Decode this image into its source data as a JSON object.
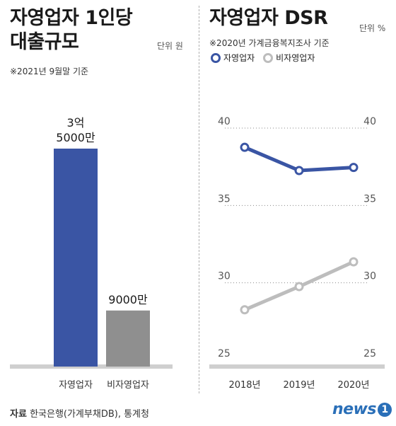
{
  "left": {
    "title_line1": "자영업자 1인당",
    "title_line2": "대출규모",
    "unit": "단위 원",
    "subtitle": "※2021년 9월말 기준"
  },
  "right": {
    "title": "자영업자 DSR",
    "unit": "단위 %",
    "subtitle": "※2020년 가계금융복지조사 기준",
    "legend_self": "자영업자",
    "legend_nonself": "비자영업자"
  },
  "footer": {
    "source_label": "자료",
    "source_text": "한국은행(가계부채DB), 통계청",
    "logo_text": "news",
    "logo_num": "1"
  },
  "colors": {
    "self": "#3a55a4",
    "nonself": "#bdbdbd",
    "bar_nonself": "#8f8f8f",
    "baseline": "#cfcfcf"
  },
  "chart_data": [
    {
      "type": "bar",
      "categories": [
        "자영업자",
        "비자영업자"
      ],
      "values": [
        350000000,
        90000000
      ],
      "value_labels": [
        [
          "3억",
          "5000만"
        ],
        [
          "9000만"
        ]
      ],
      "title": "자영업자 1인당 대출규모",
      "xlabel": "",
      "ylabel": "",
      "unit": "원"
    },
    {
      "type": "line",
      "x": [
        "2018년",
        "2019년",
        "2020년"
      ],
      "series": [
        {
          "name": "자영업자",
          "values": [
            38.3,
            36.8,
            37.0
          ]
        },
        {
          "name": "비자영업자",
          "values": [
            27.8,
            29.3,
            30.9
          ]
        }
      ],
      "yticks": [
        40,
        35,
        30,
        25
      ],
      "ylim": [
        25,
        40
      ],
      "title": "자영업자 DSR",
      "unit": "%",
      "grid": "dotted"
    }
  ]
}
